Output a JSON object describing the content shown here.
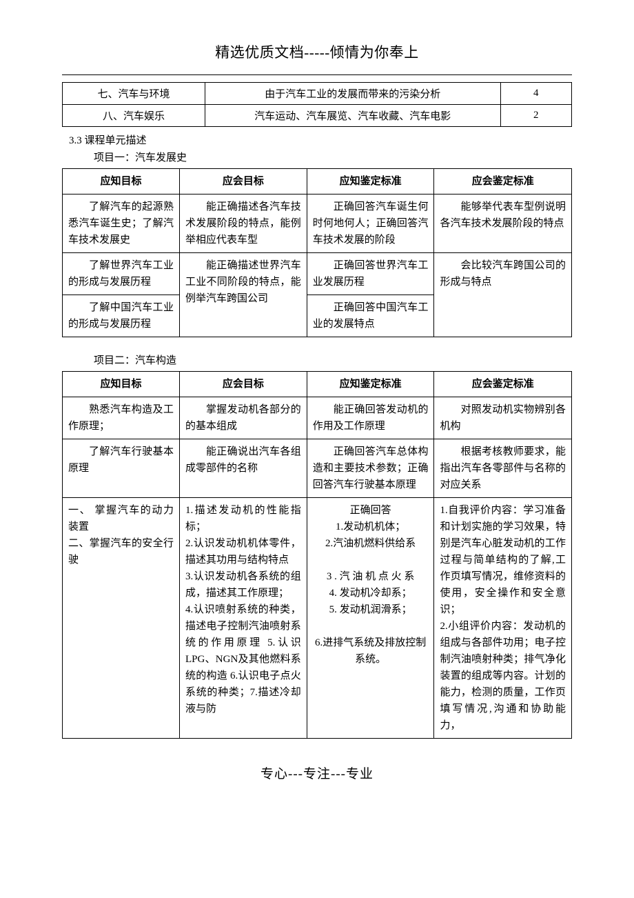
{
  "header": "精选优质文档-----倾情为你奉上",
  "top_table": {
    "rows": [
      {
        "a": "七、汽车与环境",
        "b": "由于汽车工业的发展而带来的污染分析",
        "c": "4"
      },
      {
        "a": "八、汽车娱乐",
        "b": "汽车运动、汽车展览、汽车收藏、汽车电影",
        "c": "2"
      }
    ]
  },
  "section_num": "3.3 课程单元描述",
  "project1": {
    "title": "项目一：汽车发展史",
    "headers": [
      "应知目标",
      "应会目标",
      "应知鉴定标准",
      "应会鉴定标准"
    ],
    "row1": {
      "c1": "了解汽车的起源熟悉汽车诞生史；了解汽车技术发展史",
      "c2": "能正确描述各汽车技术发展阶段的特点，能例举相应代表车型",
      "c3": "正确回答汽车诞生何时何地何人；正确回答汽车技术发展的阶段",
      "c4": "能够举代表车型例说明各汽车技术发展阶段的特点"
    },
    "row2a": {
      "c1": "了解世界汽车工业的形成与发展历程",
      "c3": "正确回答世界汽车工业发展历程"
    },
    "row2_shared": {
      "c2": "能正确描述世界汽车工业不同阶段的特点，能例举汽车跨国公司",
      "c4": "会比较汽车跨国公司的形成与特点"
    },
    "row2b": {
      "c1": "了解中国汽车工业的形成与发展历程",
      "c3": "正确回答中国汽车工业的发展特点"
    }
  },
  "project2": {
    "title": "项目二：汽车构造",
    "headers": [
      "应知目标",
      "应会目标",
      "应知鉴定标准",
      "应会鉴定标准"
    ],
    "row1": {
      "c1": "熟悉汽车构造及工作原理；",
      "c2": "掌握发动机各部分的的基本组成",
      "c3": "能正确回答发动机的作用及工作原理",
      "c4": "对照发动机实物辨别各机构"
    },
    "row2": {
      "c1": "了解汽车行驶基本原理",
      "c2": "能正确说出汽车各组成零部件的名称",
      "c3": "正确回答汽车总体构造和主要技术参数；正确回答汽车行驶基本原理",
      "c4": "根据考核教师要求，能指出汽车各零部件与名称的对应关系"
    },
    "row3": {
      "c1": "一、  掌握汽车的动力装置\n二、掌握汽车的安全行驶",
      "c2": "1.描述发动机的性能指标；\n2.认识发动机机体零件，描述其功用与结构特点\n3.认识发动机各系统的组成，描述其工作原理；\n4.认识喷射系统的种类，描述电子控制汽油喷射系统的作用原理  5.认识LPG、NGN及其他燃料系统的构造  6.认识电子点火系统的种类；7.描述冷却液与防",
      "c3": "正确回答\n1.发动机机体；\n2.汽油机燃料供给系\n\n3 . 汽 油 机 点 火 系\n4. 发动机冷却系；\n5. 发动机润滑系；\n\n6.进排气系统及排放控制系统。",
      "c4": "1.自我评价内容：学习准备和计划实施的学习效果，特别是汽车心脏发动机的工作过程与简单结构的了解,工作页填写情况，维修资料的使用，安全操作和安全意识；\n2.小组评价内容：发动机的组成与各部件功用；电子控制汽油喷射种类；排气净化装置的组成等内容。计划的能力，检测的质量，工作页填写情况,沟通和协助能力，"
    }
  },
  "footer": "专心---专注---专业"
}
